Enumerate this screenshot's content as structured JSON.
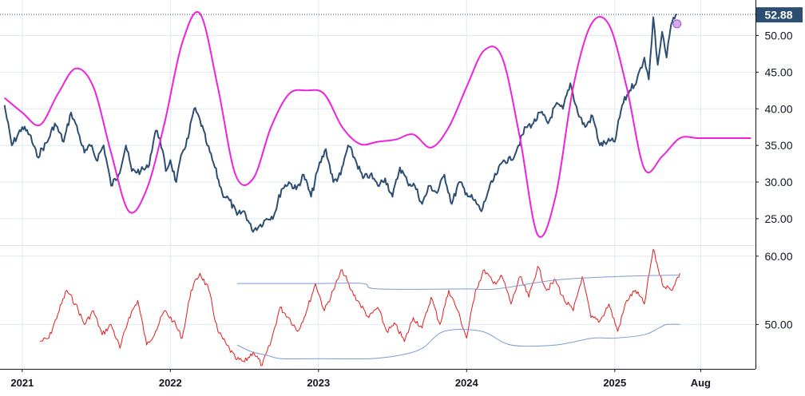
{
  "chart_data": [
    {
      "type": "line",
      "name": "price-pane",
      "price_badge": "52.88",
      "last_value": 52.88,
      "ylim": [
        21.5,
        54.2
      ],
      "xlim": [
        2020.85,
        2025.95
      ],
      "y_ticks": [
        {
          "label": "50.00",
          "value": 50
        },
        {
          "label": "45.00",
          "value": 45
        },
        {
          "label": "40.00",
          "value": 40
        },
        {
          "label": "35.00",
          "value": 35
        },
        {
          "label": "30.00",
          "value": 30
        },
        {
          "label": "25.00",
          "value": 25
        }
      ],
      "colors": {
        "price": "#2d4e73",
        "cycle": "#ee22dd",
        "badge": "#2d4e73",
        "marker": "#d8a8ee"
      },
      "series": [
        {
          "key": "price",
          "x": [
            2020.88,
            2020.93,
            2021.0,
            2021.05,
            2021.1,
            2021.17,
            2021.22,
            2021.28,
            2021.33,
            2021.36,
            2021.42,
            2021.47,
            2021.5,
            2021.55,
            2021.6,
            2021.65,
            2021.7,
            2021.74,
            2021.8,
            2021.85,
            2021.9,
            2021.93,
            2021.97,
            2022.0,
            2022.04,
            2022.08,
            2022.12,
            2022.16,
            2022.2,
            2022.25,
            2022.3,
            2022.35,
            2022.4,
            2022.45,
            2022.5,
            2022.55,
            2022.6,
            2022.65,
            2022.7,
            2022.75,
            2022.8,
            2022.85,
            2022.9,
            2022.95,
            2023.0,
            2023.05,
            2023.1,
            2023.15,
            2023.2,
            2023.25,
            2023.3,
            2023.35,
            2023.4,
            2023.45,
            2023.5,
            2023.55,
            2023.6,
            2023.65,
            2023.7,
            2023.75,
            2023.8,
            2023.85,
            2023.9,
            2023.95,
            2024.0,
            2024.05,
            2024.1,
            2024.15,
            2024.2,
            2024.25,
            2024.3,
            2024.35,
            2024.4,
            2024.45,
            2024.5,
            2024.55,
            2024.6,
            2024.65,
            2024.7,
            2024.75,
            2024.8,
            2024.85,
            2024.9,
            2024.95,
            2025.0,
            2025.05,
            2025.1,
            2025.15,
            2025.2,
            2025.23,
            2025.26,
            2025.29,
            2025.32,
            2025.35,
            2025.38,
            2025.42
          ],
          "y": [
            40.5,
            35.0,
            37.5,
            36.5,
            33.5,
            35.5,
            38.0,
            35.5,
            39.5,
            38.0,
            34.0,
            35.0,
            33.0,
            35.0,
            29.5,
            31.0,
            35.0,
            31.5,
            31.5,
            32.0,
            37.0,
            36.0,
            31.5,
            33.0,
            30.0,
            34.0,
            36.0,
            40.0,
            38.5,
            35.0,
            32.0,
            28.5,
            27.5,
            25.5,
            26.0,
            23.5,
            24.0,
            25.0,
            25.5,
            29.0,
            30.0,
            29.0,
            31.0,
            28.0,
            32.0,
            34.5,
            30.0,
            31.0,
            35.0,
            33.0,
            30.5,
            31.0,
            29.5,
            30.5,
            28.0,
            32.0,
            30.0,
            29.5,
            27.0,
            29.5,
            28.5,
            31.0,
            27.0,
            30.0,
            28.5,
            27.5,
            26.0,
            29.0,
            31.0,
            33.0,
            33.0,
            35.0,
            37.5,
            38.0,
            39.5,
            38.0,
            40.5,
            40.0,
            43.5,
            39.5,
            37.5,
            39.0,
            35.0,
            35.5,
            35.5,
            40.5,
            42.5,
            44.0,
            47.0,
            44.0,
            52.5,
            46.0,
            50.5,
            47.0,
            51.5,
            52.88
          ]
        },
        {
          "key": "cycle",
          "x": [
            2020.88,
            2021.0,
            2021.12,
            2021.24,
            2021.36,
            2021.48,
            2021.6,
            2021.72,
            2021.84,
            2021.96,
            2022.08,
            2022.2,
            2022.32,
            2022.44,
            2022.56,
            2022.68,
            2022.8,
            2022.92,
            2023.04,
            2023.16,
            2023.28,
            2023.4,
            2023.52,
            2023.64,
            2023.76,
            2023.88,
            2024.0,
            2024.12,
            2024.24,
            2024.36,
            2024.48,
            2024.6,
            2024.72,
            2024.84,
            2024.96,
            2025.08,
            2025.2,
            2025.32,
            2025.44,
            2025.56,
            2025.68,
            2025.8,
            2025.92
          ],
          "y": [
            41.5,
            39.5,
            37.8,
            42.0,
            45.5,
            43.0,
            34.0,
            26.0,
            29.0,
            38.0,
            49.0,
            53.0,
            43.0,
            31.0,
            30.5,
            37.5,
            42.0,
            42.5,
            42.0,
            37.5,
            35.2,
            35.5,
            35.8,
            36.5,
            34.7,
            37.5,
            43.0,
            48.0,
            47.0,
            36.0,
            22.8,
            28.0,
            43.0,
            51.5,
            51.5,
            43.0,
            31.8,
            33.5,
            36.0,
            36.0,
            36.0,
            36.0,
            36.0
          ]
        }
      ]
    },
    {
      "type": "line",
      "name": "indicator-pane",
      "ylim": [
        43.5,
        61.5
      ],
      "xlim": [
        2020.85,
        2025.95
      ],
      "y_ticks": [
        {
          "label": "60.00",
          "value": 60
        },
        {
          "label": "50.00",
          "value": 50
        }
      ],
      "colors": {
        "osc": "#e31b1b",
        "upper": "#7b9bd8",
        "lower": "#7b9bd8"
      },
      "series": [
        {
          "key": "osc",
          "x": [
            2021.12,
            2021.18,
            2021.24,
            2021.3,
            2021.36,
            2021.42,
            2021.48,
            2021.54,
            2021.6,
            2021.66,
            2021.72,
            2021.78,
            2021.84,
            2021.9,
            2021.96,
            2022.02,
            2022.08,
            2022.14,
            2022.2,
            2022.26,
            2022.32,
            2022.38,
            2022.44,
            2022.5,
            2022.56,
            2022.62,
            2022.68,
            2022.74,
            2022.8,
            2022.86,
            2022.92,
            2022.98,
            2023.04,
            2023.1,
            2023.16,
            2023.22,
            2023.28,
            2023.34,
            2023.4,
            2023.46,
            2023.52,
            2023.58,
            2023.64,
            2023.7,
            2023.76,
            2023.82,
            2023.88,
            2023.94,
            2024.0,
            2024.06,
            2024.12,
            2024.18,
            2024.24,
            2024.3,
            2024.36,
            2024.42,
            2024.48,
            2024.54,
            2024.6,
            2024.66,
            2024.72,
            2024.78,
            2024.84,
            2024.9,
            2024.96,
            2025.02,
            2025.08,
            2025.14,
            2025.2,
            2025.26,
            2025.32,
            2025.38,
            2025.44
          ],
          "y": [
            47.5,
            48.0,
            51.5,
            55.0,
            53.0,
            50.0,
            52.0,
            48.5,
            50.0,
            46.5,
            51.0,
            53.5,
            47.0,
            49.0,
            52.0,
            50.5,
            48.0,
            55.0,
            57.5,
            55.0,
            49.0,
            47.0,
            45.0,
            44.5,
            46.0,
            44.0,
            47.5,
            52.5,
            51.0,
            49.0,
            52.0,
            56.0,
            52.0,
            55.0,
            58.0,
            55.0,
            53.0,
            51.0,
            52.5,
            49.0,
            50.0,
            47.5,
            51.0,
            49.5,
            54.0,
            50.0,
            55.0,
            52.0,
            48.0,
            55.0,
            58.0,
            56.0,
            57.0,
            53.0,
            57.0,
            54.0,
            58.5,
            55.0,
            56.5,
            53.5,
            52.0,
            57.0,
            51.0,
            50.5,
            53.0,
            49.0,
            53.5,
            55.0,
            53.0,
            61.0,
            56.0,
            55.0,
            57.5
          ]
        },
        {
          "key": "upper",
          "x": [
            2022.45,
            2023.0,
            2023.3,
            2023.4,
            2024.0,
            2024.2,
            2024.6,
            2025.0,
            2025.35,
            2025.44
          ],
          "y": [
            56.0,
            56.0,
            56.0,
            55.2,
            55.2,
            55.2,
            56.5,
            57.0,
            57.2,
            57.2
          ]
        },
        {
          "key": "lower",
          "x": [
            2022.45,
            2022.55,
            2022.65,
            2022.75,
            2023.0,
            2023.35,
            2023.55,
            2023.7,
            2023.85,
            2024.1,
            2024.3,
            2024.6,
            2024.85,
            2025.0,
            2025.2,
            2025.3,
            2025.35,
            2025.44
          ],
          "y": [
            47.0,
            46.0,
            45.5,
            45.0,
            45.0,
            45.0,
            45.5,
            46.5,
            49.0,
            49.0,
            47.0,
            47.0,
            48.0,
            48.0,
            48.5,
            49.5,
            50.0,
            50.0
          ]
        }
      ]
    }
  ],
  "x_axis": {
    "ticks": [
      {
        "label": "2021",
        "value": 2021.0
      },
      {
        "label": "2022",
        "value": 2022.0
      },
      {
        "label": "2023",
        "value": 2023.0
      },
      {
        "label": "2024",
        "value": 2024.0
      },
      {
        "label": "2025",
        "value": 2025.0
      },
      {
        "label": "Aug",
        "value": 2025.58
      }
    ]
  }
}
